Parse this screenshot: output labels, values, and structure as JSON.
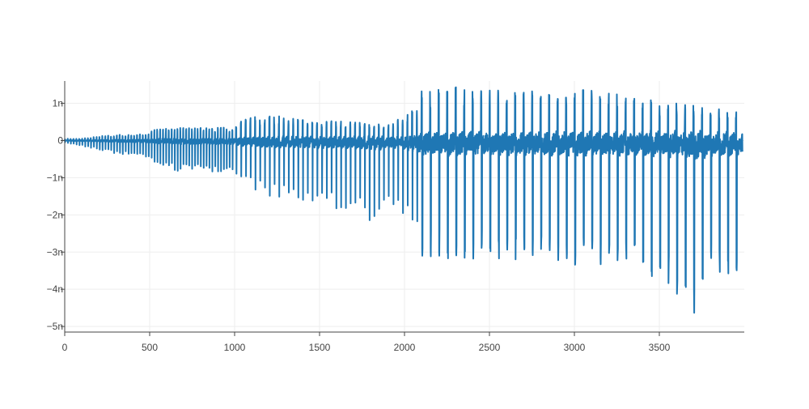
{
  "chart_data": {
    "type": "line",
    "title": "",
    "xlabel": "",
    "ylabel": "",
    "xlim": [
      0,
      4000
    ],
    "ylim": [
      -5.15e-09,
      1.6e-09
    ],
    "grid": true,
    "legend": "none",
    "x_ticks": [
      {
        "value": 0,
        "label": "0"
      },
      {
        "value": 500,
        "label": "500"
      },
      {
        "value": 1000,
        "label": "1000"
      },
      {
        "value": 1500,
        "label": "1500"
      },
      {
        "value": 2000,
        "label": "2000"
      },
      {
        "value": 2500,
        "label": "2500"
      },
      {
        "value": 3000,
        "label": "3000"
      },
      {
        "value": 3500,
        "label": "3500"
      }
    ],
    "y_ticks": [
      {
        "value": 1e-09,
        "label": "1n"
      },
      {
        "value": 0,
        "label": "0"
      },
      {
        "value": -1e-09,
        "label": "−1n"
      },
      {
        "value": -2e-09,
        "label": "−2n"
      },
      {
        "value": -3e-09,
        "label": "−3n"
      },
      {
        "value": -4e-09,
        "label": "−4n"
      },
      {
        "value": -5e-09,
        "label": "−5n"
      }
    ],
    "series": [
      {
        "color": "#1f77b4",
        "envelope": {
          "x": [
            0,
            100,
            260,
            300,
            500,
            520,
            700,
            1000,
            1040,
            1200,
            1400,
            1500,
            1700,
            1860,
            1900,
            2080,
            2100,
            2300,
            2700,
            3000,
            3300,
            3500,
            3730,
            3800,
            3990
          ],
          "upper": [
            5e-11,
            5e-11,
            1.5e-10,
            1.5e-10,
            2e-10,
            3e-10,
            3.5e-10,
            3.5e-10,
            6e-10,
            7e-10,
            6e-10,
            5.5e-10,
            5e-10,
            4.5e-10,
            4e-10,
            9e-10,
            1.4e-09,
            1.45e-09,
            1.3e-09,
            1.45e-09,
            1.2e-09,
            1.05e-09,
            9.5e-10,
            9e-10,
            8e-10
          ],
          "lower": [
            -5e-11,
            -1.5e-10,
            -3e-10,
            -3.5e-10,
            -4.5e-10,
            -7e-10,
            -8.5e-10,
            -8.5e-10,
            -1.2e-09,
            -1.5e-09,
            -1.7e-09,
            -1.8e-09,
            -1.85e-09,
            -2.4e-09,
            -1.8e-09,
            -2.5e-09,
            -3.1e-09,
            -3.2e-09,
            -3.2e-09,
            -3.4e-09,
            -3.6e-09,
            -3.7e-09,
            -4.85e-09,
            -3.7e-09,
            -3.5e-09
          ]
        },
        "period": [
          {
            "x_start": 0,
            "x_end": 1000,
            "period": 17
          },
          {
            "x_start": 1000,
            "x_end": 2100,
            "period": 28
          },
          {
            "x_start": 2100,
            "x_end": 4000,
            "period": 50
          }
        ]
      }
    ]
  }
}
